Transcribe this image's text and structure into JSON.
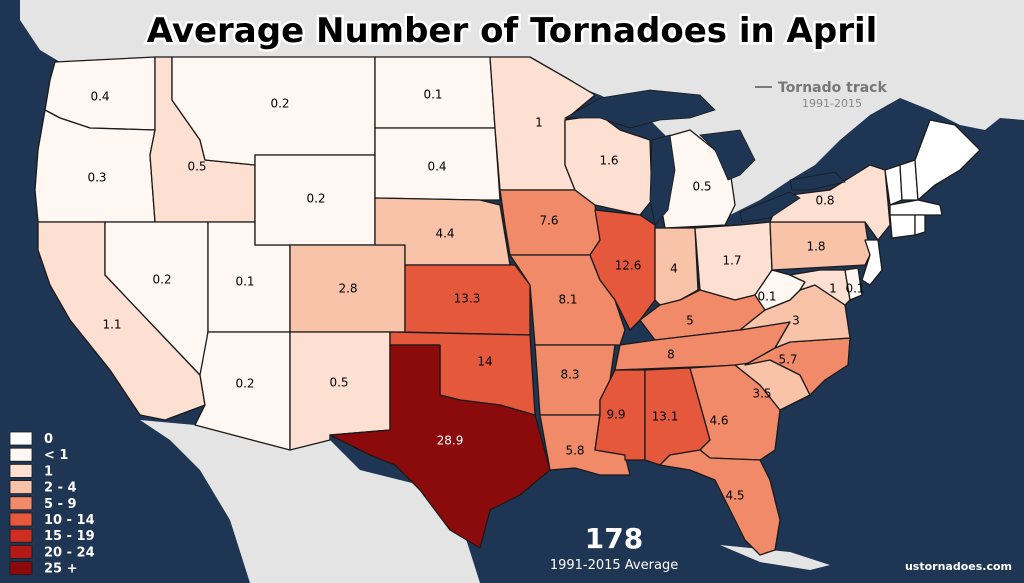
{
  "title": "Average Number of Tornadoes in April",
  "track_legend": {
    "label": "Tornado track",
    "years": "1991-2015"
  },
  "total": {
    "value": "178",
    "label": "1991-2015 Average"
  },
  "credit": "ustornadoes.com",
  "colors": {
    "ocean": "#1e3553",
    "land": "#e4e4e4",
    "track": "#7a7a7a"
  },
  "legend": [
    {
      "label": "0",
      "color": "#ffffff"
    },
    {
      "label": "< 1",
      "color": "#fff7f2"
    },
    {
      "label": "1",
      "color": "#fde0d2"
    },
    {
      "label": "2 - 4",
      "color": "#f9c3a9"
    },
    {
      "label": "5 - 9",
      "color": "#f08a68"
    },
    {
      "label": "10 - 14",
      "color": "#e5583c"
    },
    {
      "label": "15 - 19",
      "color": "#cf2d22"
    },
    {
      "label": "20 - 24",
      "color": "#b21a18"
    },
    {
      "label": "25 +",
      "color": "#8b0a0c"
    }
  ],
  "states": {
    "WA": "0.4",
    "OR": "0.3",
    "CA": "1.1",
    "ID": "0.5",
    "NV": "0.2",
    "UT": "0.1",
    "AZ": "0.2",
    "MT": "0.2",
    "WY": "0.2",
    "CO": "2.8",
    "NM": "0.5",
    "ND": "0.1",
    "SD": "0.4",
    "NE": "4.4",
    "KS": "13.3",
    "OK": "14",
    "TX": "28.9",
    "MN": "1",
    "IA": "7.6",
    "MO": "8.1",
    "AR": "8.3",
    "LA": "5.8",
    "WI": "1.6",
    "IL": "12.6",
    "MI": "0.5",
    "IN": "4",
    "OH": "1.7",
    "KY": "5",
    "TN": "8",
    "MS": "9.9",
    "AL": "13.1",
    "GA": "4.6",
    "FL": "4.5",
    "SC": "3.5",
    "NC": "5.7",
    "VA": "3",
    "WV": "0.1",
    "PA": "1.8",
    "NY": "0.8",
    "MD": "1",
    "DE": "0.1"
  }
}
